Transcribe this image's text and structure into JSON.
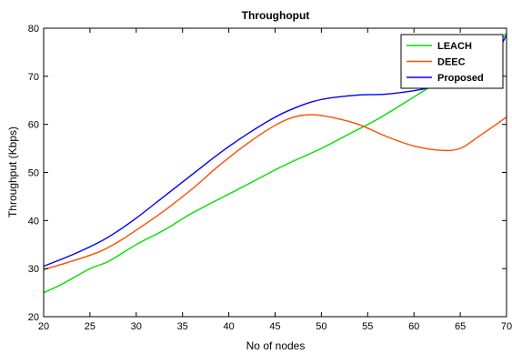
{
  "chart_data": {
    "type": "line",
    "title": "Throughoput",
    "xlabel": "No of nodes",
    "ylabel": "Throughput (Kbps)",
    "xlim": [
      20,
      70
    ],
    "ylim": [
      20,
      80
    ],
    "xticks": [
      20,
      25,
      30,
      35,
      40,
      45,
      50,
      55,
      60,
      65,
      70
    ],
    "yticks": [
      20,
      30,
      40,
      50,
      60,
      70,
      80
    ],
    "grid": false,
    "legend_position": "top-right",
    "series": [
      {
        "name": "LEACH",
        "color": "#00e000",
        "x": [
          20,
          22,
          25,
          27,
          30,
          33,
          36,
          40,
          43,
          46,
          50,
          53,
          56,
          59,
          62,
          65,
          68,
          70
        ],
        "y": [
          25,
          26.8,
          30,
          31.5,
          35,
          38,
          41.5,
          45.5,
          48.5,
          51.5,
          55,
          58,
          61,
          64.5,
          68,
          70.5,
          74.5,
          79
        ]
      },
      {
        "name": "DEEC",
        "color": "#ff4c00",
        "x": [
          20,
          23,
          26,
          28,
          30,
          33,
          36,
          39,
          42,
          45,
          47,
          49,
          51,
          54,
          57,
          60,
          63,
          65,
          67,
          70
        ],
        "y": [
          29.8,
          31.5,
          33.5,
          35.5,
          38,
          42,
          46.5,
          51.5,
          56,
          59.8,
          61.5,
          62,
          61.5,
          60,
          57.5,
          55.5,
          54.6,
          55,
          57.5,
          61.5
        ]
      },
      {
        "name": "Proposed",
        "color": "#0000ff",
        "x": [
          20,
          23,
          26,
          28,
          30,
          33,
          36,
          39,
          42,
          45,
          47,
          49,
          51,
          54,
          57,
          60,
          62,
          65,
          68,
          70
        ],
        "y": [
          30.5,
          32.8,
          35.5,
          37.8,
          40.5,
          45,
          49.5,
          54,
          58,
          61.5,
          63.3,
          64.7,
          65.5,
          66.1,
          66.3,
          67,
          67.8,
          69.5,
          72.5,
          78.5
        ]
      }
    ]
  }
}
